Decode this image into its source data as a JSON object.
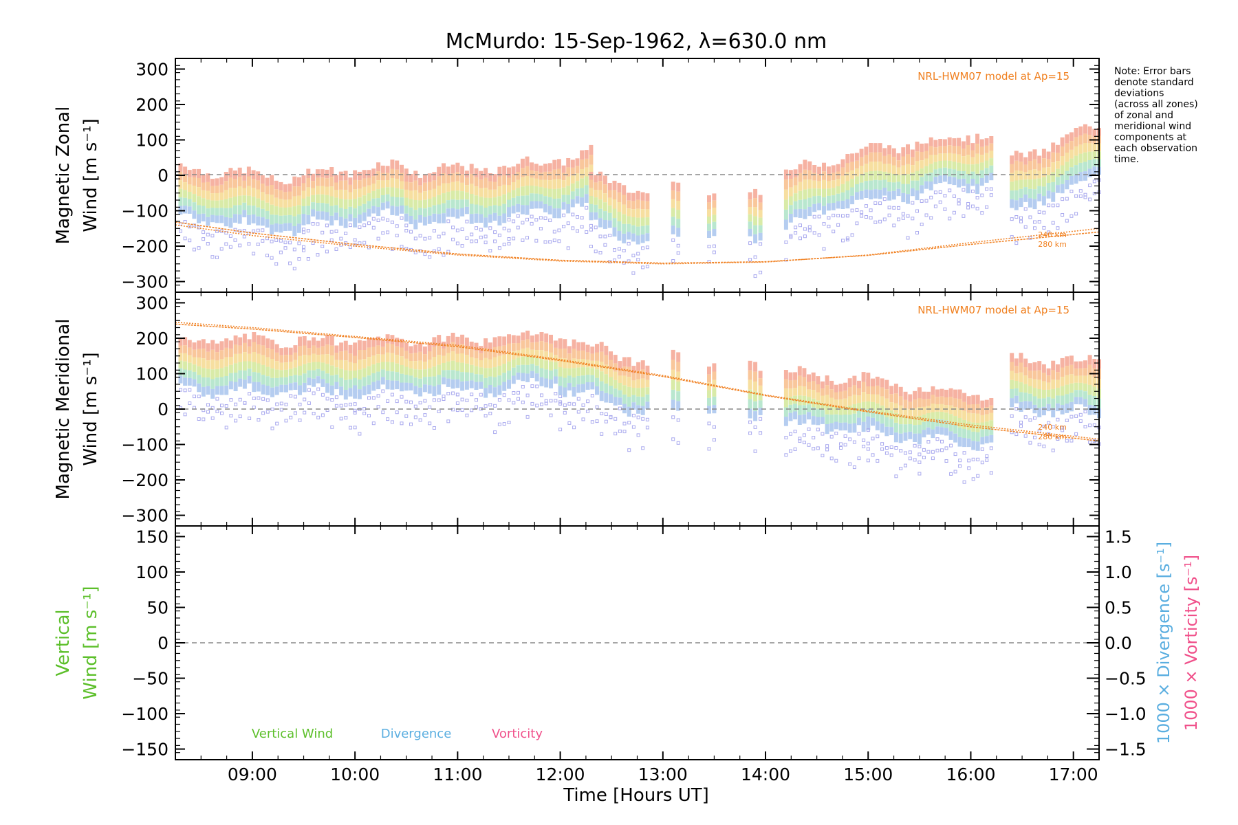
{
  "title": "McMurdo: 15-Sep-1962, λ=630.0 nm",
  "note_lines": [
    "Note: Error bars",
    "denote standard",
    "deviations",
    "(across all zones)",
    "of zonal and",
    "meridional wind",
    "components at",
    "each observation",
    "time."
  ],
  "colors": {
    "model": "#f08020",
    "vertical": "#5cbf2a",
    "divergence": "#5aaee0",
    "vorticity": "#f0508a",
    "error_bar": "#aaaaee",
    "zero_line": "#888888"
  },
  "chart_data": [
    {
      "type": "scatter",
      "ylabel_lines": [
        "Magnetic Zonal",
        "Wind [m s⁻¹]"
      ],
      "ylim": [
        -330,
        330
      ],
      "yticks": [
        300,
        200,
        100,
        0,
        -100,
        -200,
        -300
      ],
      "model_label": "NRL-HWM07 model at Ap=15",
      "model_series": [
        {
          "name": "240 km",
          "x": [
            8.25,
            9.0,
            10.0,
            11.0,
            12.0,
            13.0,
            14.0,
            15.0,
            16.0,
            17.25
          ],
          "y": [
            -140,
            -170,
            -200,
            -225,
            -242,
            -250,
            -245,
            -225,
            -190,
            -150
          ]
        },
        {
          "name": "280 km",
          "x": [
            8.25,
            9.0,
            10.0,
            11.0,
            12.0,
            13.0,
            14.0,
            15.0,
            16.0,
            17.25
          ],
          "y": [
            -132,
            -163,
            -195,
            -222,
            -240,
            -248,
            -244,
            -226,
            -195,
            -160
          ]
        }
      ],
      "wind_segments": [
        {
          "x": [
            8.3,
            9.5
          ],
          "y": [
            -50,
            -85
          ]
        },
        {
          "x": [
            9.5,
            10.5
          ],
          "y": [
            -70,
            -40
          ]
        },
        {
          "x": [
            10.5,
            11.5
          ],
          "y": [
            -60,
            -50
          ]
        },
        {
          "x": [
            11.5,
            12.3
          ],
          "y": [
            -50,
            -10
          ]
        },
        {
          "x": [
            12.3,
            12.85
          ],
          "y": [
            -70,
            -120
          ]
        },
        {
          "x": [
            13.1,
            13.15
          ],
          "y": [
            -100,
            -100
          ]
        },
        {
          "x": [
            13.45,
            13.5
          ],
          "y": [
            -110,
            -110
          ]
        },
        {
          "x": [
            13.85,
            13.95
          ],
          "y": [
            -110,
            -110
          ]
        },
        {
          "x": [
            14.2,
            14.8
          ],
          "y": [
            -70,
            -10
          ]
        },
        {
          "x": [
            14.8,
            16.2
          ],
          "y": [
            -10,
            50
          ]
        },
        {
          "x": [
            16.4,
            17.25
          ],
          "y": [
            -30,
            70
          ]
        }
      ]
    },
    {
      "type": "scatter",
      "ylabel_lines": [
        "Magnetic Meridional",
        "Wind [m s⁻¹]"
      ],
      "ylim": [
        -330,
        330
      ],
      "yticks": [
        300,
        200,
        100,
        0,
        -100,
        -200,
        -300
      ],
      "model_label": "NRL-HWM07 model at Ap=15",
      "model_series": [
        {
          "name": "240 km",
          "x": [
            8.25,
            9.0,
            10.0,
            11.0,
            12.0,
            13.0,
            14.0,
            15.0,
            16.0,
            17.25
          ],
          "y": [
            245,
            230,
            205,
            180,
            140,
            95,
            40,
            -5,
            -45,
            -85
          ]
        },
        {
          "name": "280 km",
          "x": [
            8.25,
            9.0,
            10.0,
            11.0,
            12.0,
            13.0,
            14.0,
            15.0,
            16.0,
            17.25
          ],
          "y": [
            240,
            226,
            202,
            176,
            137,
            92,
            38,
            -8,
            -50,
            -90
          ]
        }
      ],
      "wind_segments": [
        {
          "x": [
            8.3,
            10.0
          ],
          "y": [
            125,
            120
          ]
        },
        {
          "x": [
            10.0,
            11.0
          ],
          "y": [
            120,
            125
          ]
        },
        {
          "x": [
            11.0,
            12.0
          ],
          "y": [
            120,
            145
          ]
        },
        {
          "x": [
            12.0,
            12.85
          ],
          "y": [
            130,
            60
          ]
        },
        {
          "x": [
            13.1,
            13.15
          ],
          "y": [
            75,
            75
          ]
        },
        {
          "x": [
            13.45,
            13.5
          ],
          "y": [
            60,
            60
          ]
        },
        {
          "x": [
            13.85,
            13.95
          ],
          "y": [
            55,
            55
          ]
        },
        {
          "x": [
            14.2,
            15.0
          ],
          "y": [
            30,
            10
          ]
        },
        {
          "x": [
            15.0,
            15.5
          ],
          "y": [
            10,
            -15
          ]
        },
        {
          "x": [
            15.5,
            16.2
          ],
          "y": [
            -15,
            -30
          ]
        },
        {
          "x": [
            16.4,
            17.25
          ],
          "y": [
            70,
            60
          ]
        }
      ]
    },
    {
      "type": "line",
      "ylabel_lines": [
        "Vertical",
        "Wind [m s⁻¹]"
      ],
      "ylim": [
        -165,
        165
      ],
      "yticks": [
        150,
        100,
        50,
        0,
        -50,
        -100,
        -150
      ],
      "y2label_lines": [
        "1000 × Divergence [s⁻¹]",
        "1000 × Vorticity [s⁻¹]"
      ],
      "y2lim": [
        -1.65,
        1.65
      ],
      "y2ticks": [
        "1.5",
        "1.0",
        "0.5",
        "0.0",
        "−0.5",
        "−1.0",
        "−1.5"
      ],
      "legend": [
        "Vertical Wind",
        "Divergence",
        "Vorticity"
      ]
    }
  ],
  "x_axis": {
    "label": "Time [Hours UT]",
    "xlim": [
      8.25,
      17.25
    ],
    "ticks": [
      {
        "value": 9,
        "label": "09:00"
      },
      {
        "value": 10,
        "label": "10:00"
      },
      {
        "value": 11,
        "label": "11:00"
      },
      {
        "value": 12,
        "label": "12:00"
      },
      {
        "value": 13,
        "label": "13:00"
      },
      {
        "value": 14,
        "label": "14:00"
      },
      {
        "value": 15,
        "label": "15:00"
      },
      {
        "value": 16,
        "label": "16:00"
      },
      {
        "value": 17,
        "label": "17:00"
      }
    ]
  }
}
